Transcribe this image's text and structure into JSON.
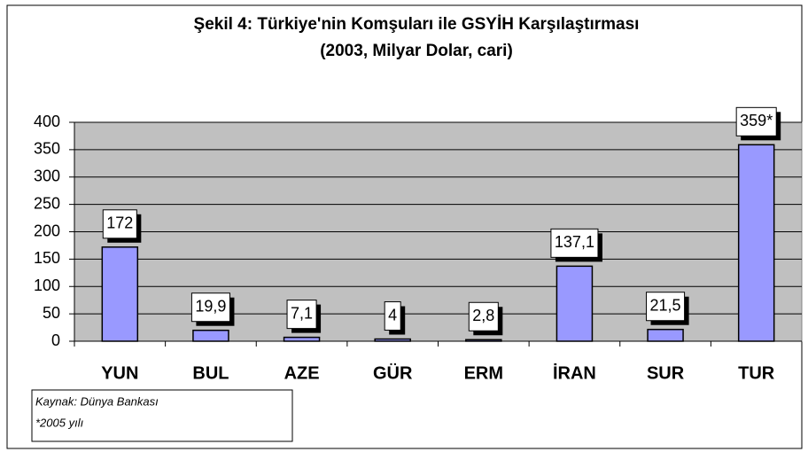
{
  "chart_data": {
    "type": "bar",
    "title": "Şekil 4: Türkiye'nin Komşuları ile GSYİH Karşılaştırması",
    "subtitle": "(2003, Milyar Dolar, cari)",
    "categories": [
      "YUN",
      "BUL",
      "AZE",
      "GÜR",
      "ERM",
      "İRAN",
      "SUR",
      "TUR"
    ],
    "values": [
      172,
      19.9,
      7.1,
      4,
      2.8,
      137.1,
      21.5,
      359
    ],
    "value_labels": [
      "172",
      "19,9",
      "7,1",
      "4",
      "2,8",
      "137,1",
      "21,5",
      "359*"
    ],
    "color": "#9999ff",
    "ylim": [
      0,
      400
    ],
    "yticks": [
      0,
      50,
      100,
      150,
      200,
      250,
      300,
      350,
      400
    ],
    "grid": true,
    "notes": [
      "Kaynak: Dünya Bankası",
      "*2005 yılı"
    ]
  }
}
